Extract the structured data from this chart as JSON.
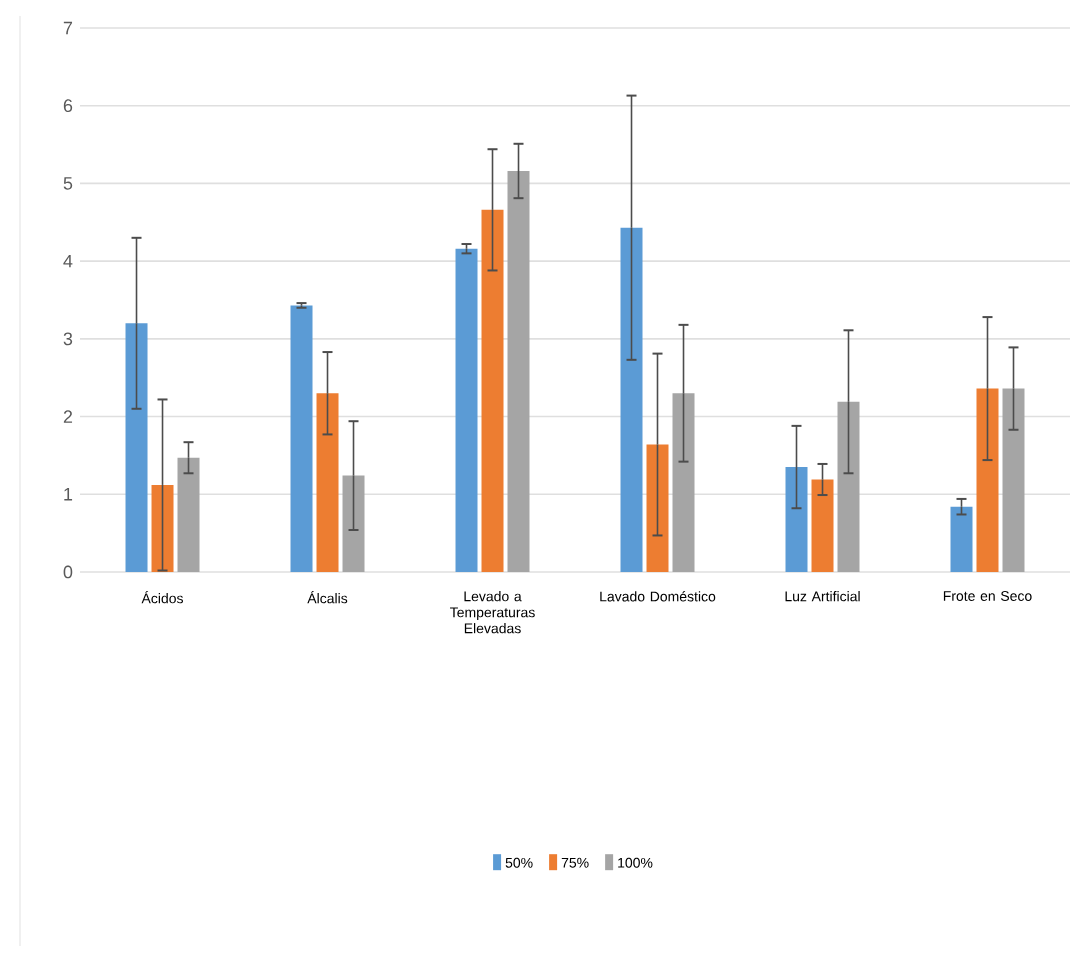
{
  "chart_data": {
    "type": "bar",
    "categories": [
      "Ácidos",
      "Álcalis",
      "Levado a Temperaturas Elevadas",
      "Lavado Doméstico",
      "Luz Artificial",
      "Frote en Seco"
    ],
    "series": [
      {
        "name": "50%",
        "color": "#5b9bd5",
        "values": [
          3.2,
          3.43,
          4.16,
          4.43,
          1.35,
          0.84
        ],
        "errors": [
          1.1,
          0.03,
          0.06,
          1.7,
          0.53,
          0.1
        ]
      },
      {
        "name": "75%",
        "color": "#ed7d31",
        "values": [
          1.12,
          2.3,
          4.66,
          1.64,
          1.19,
          2.36
        ],
        "errors": [
          1.1,
          0.53,
          0.78,
          1.17,
          0.2,
          0.92
        ]
      },
      {
        "name": "100%",
        "color": "#a5a5a5",
        "values": [
          1.47,
          1.24,
          5.16,
          2.3,
          2.19,
          2.36
        ],
        "errors": [
          0.2,
          0.7,
          0.35,
          0.88,
          0.92,
          0.53
        ]
      }
    ],
    "ylim": [
      0,
      7
    ],
    "yticks": [
      0,
      1,
      2,
      3,
      4,
      5,
      6,
      7
    ],
    "grid": "y",
    "legend": "bottom"
  }
}
